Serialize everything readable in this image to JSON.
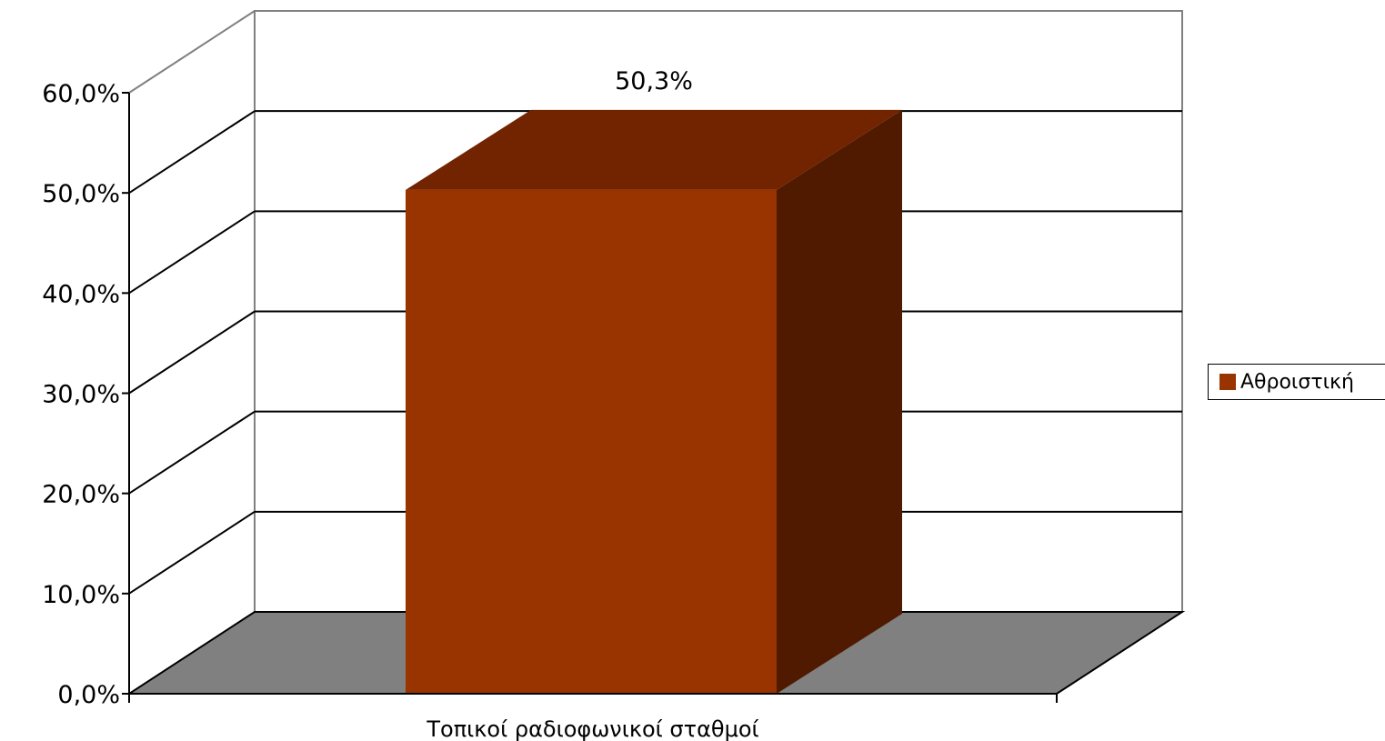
{
  "chart_data": {
    "type": "bar",
    "style": "3d-column",
    "categories": [
      "Τοπικοί ραδιοφωνικοί σταθμοί"
    ],
    "series": [
      {
        "name": "Αθροιστική",
        "values": [
          50.3
        ],
        "color": "#993300"
      }
    ],
    "data_labels": [
      "50,3%"
    ],
    "ylim": [
      0,
      60
    ],
    "yticks": [
      0,
      10,
      20,
      30,
      40,
      50,
      60
    ],
    "ytick_labels": [
      "0,0%",
      "10,0%",
      "20,0%",
      "30,0%",
      "40,0%",
      "50,0%",
      "60,0%"
    ],
    "grid": true,
    "legend_position": "right",
    "colors": {
      "floor": "#808080",
      "bar_front": "#993300",
      "bar_top": "#722400",
      "bar_side": "#501a00",
      "gridline": "#000000",
      "wall_border": "#808080"
    }
  }
}
